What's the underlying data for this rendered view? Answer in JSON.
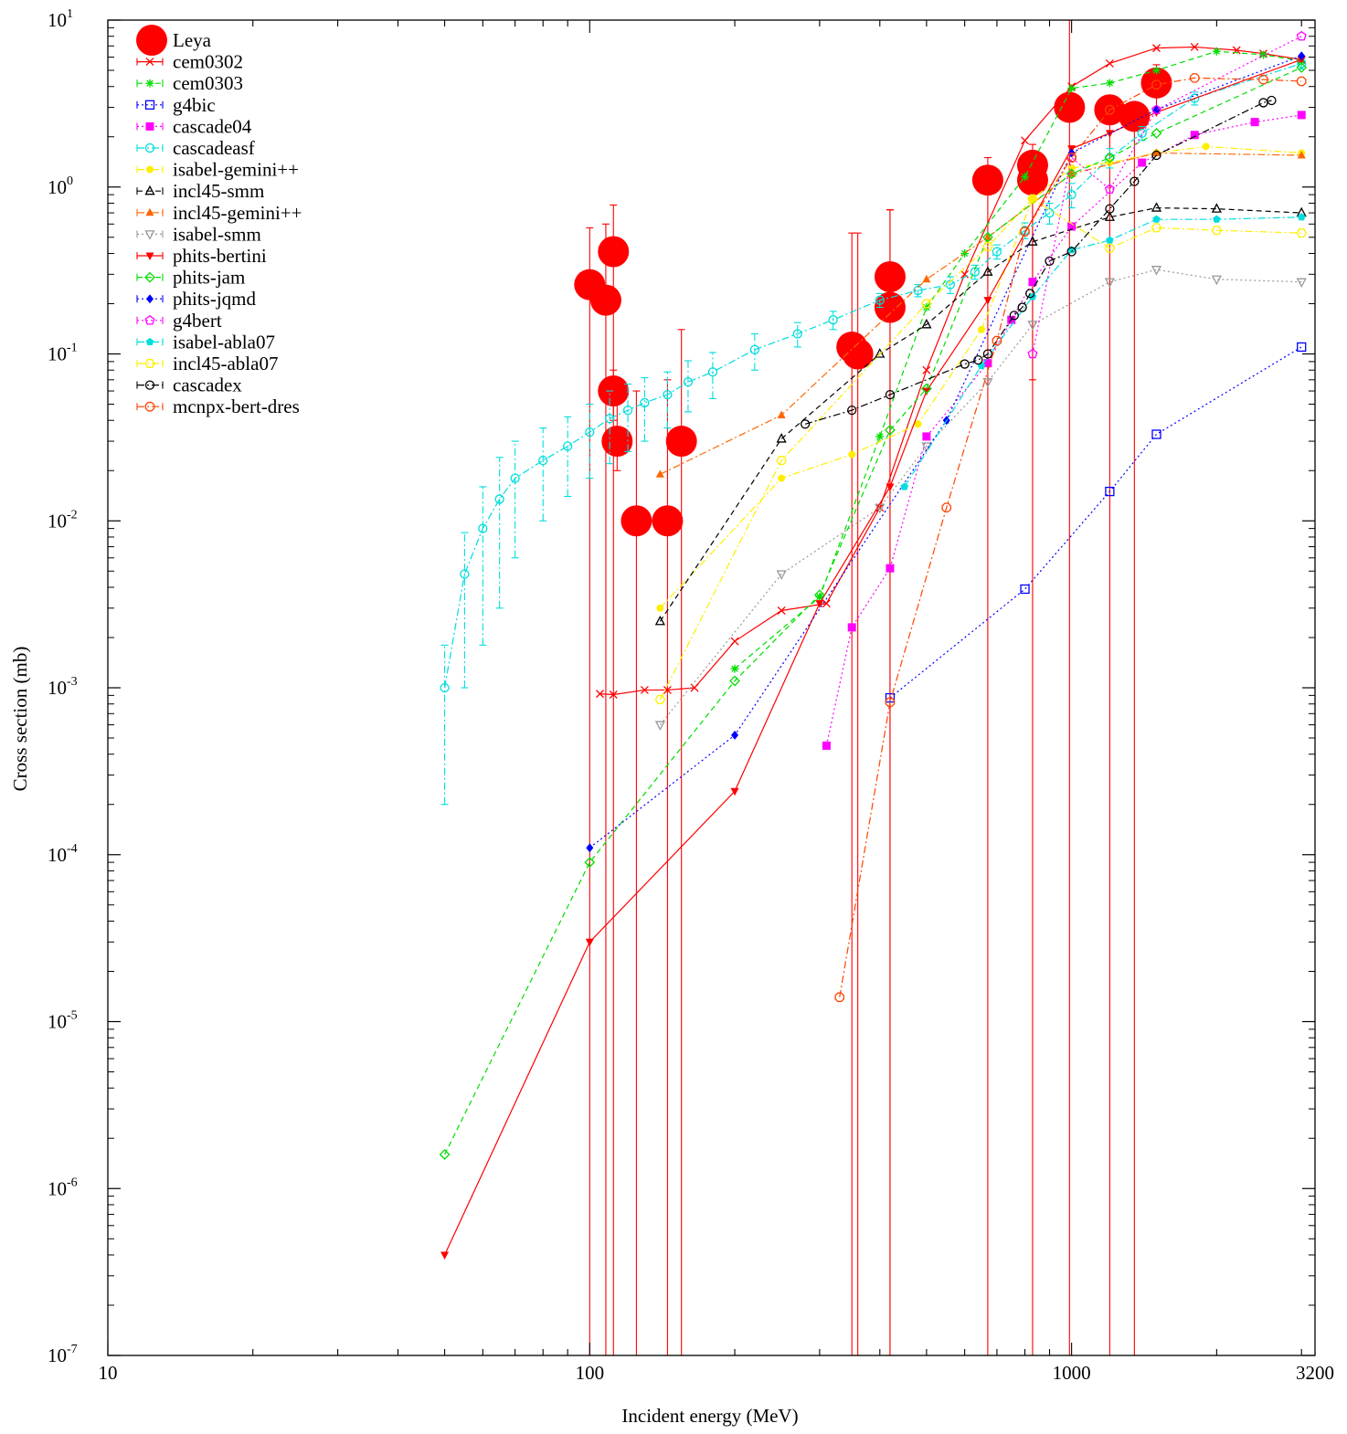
{
  "chart_data": {
    "type": "scatter",
    "title": "",
    "xlabel": "Incident energy (MeV)",
    "ylabel": "Cross section (mb)",
    "xscale": "log",
    "yscale": "log",
    "xlim": [
      10,
      3200
    ],
    "ylim": [
      1e-07,
      10
    ],
    "x_ticks": [
      {
        "value": 10,
        "label": "10"
      },
      {
        "value": 100,
        "label": "100"
      },
      {
        "value": 1000,
        "label": "1000"
      },
      {
        "value": 3200,
        "label": "3200"
      }
    ],
    "y_ticks": [
      {
        "value": 1e-07,
        "base": "10",
        "exp": "-7"
      },
      {
        "value": 1e-06,
        "base": "10",
        "exp": "-6"
      },
      {
        "value": 1e-05,
        "base": "10",
        "exp": "-5"
      },
      {
        "value": 0.0001,
        "base": "10",
        "exp": "-4"
      },
      {
        "value": 0.001,
        "base": "10",
        "exp": "-3"
      },
      {
        "value": 0.01,
        "base": "10",
        "exp": "-2"
      },
      {
        "value": 0.1,
        "base": "10",
        "exp": "-1"
      },
      {
        "value": 1,
        "base": "10",
        "exp": "0"
      },
      {
        "value": 10,
        "base": "10",
        "exp": "1"
      }
    ],
    "grid": false,
    "legend_position": "top-left",
    "series": [
      {
        "name": "Leya",
        "color": "#ff0000",
        "marker": "bigcircle",
        "line": "none",
        "x": [
          100,
          108,
          112,
          112,
          114,
          125,
          145,
          155,
          350,
          360,
          420,
          420,
          670,
          830,
          830,
          990,
          1200,
          1350,
          1500
        ],
        "y": [
          0.26,
          0.21,
          0.41,
          0.06,
          0.03,
          0.01,
          0.01,
          0.03,
          0.11,
          0.1,
          0.29,
          0.19,
          1.1,
          1.35,
          1.1,
          3.0,
          2.9,
          2.65,
          4.2
        ],
        "err_low": [
          1e-07,
          1e-07,
          1e-07,
          0.04,
          0.02,
          1e-07,
          1e-07,
          1e-07,
          1e-07,
          1e-07,
          1e-07,
          1e-07,
          1e-07,
          1e-07,
          0.07,
          1e-07,
          1e-07,
          1e-07,
          3.0
        ],
        "err_high": [
          0.57,
          0.6,
          0.78,
          0.08,
          0.05,
          0.06,
          0.07,
          0.14,
          0.53,
          0.53,
          0.73,
          0.73,
          1.5,
          1.8,
          1.5,
          10,
          3.2,
          3.0,
          5.4
        ]
      },
      {
        "name": "cem0302",
        "color": "#ff0000",
        "marker": "x",
        "line": "solid",
        "x": [
          105,
          112,
          130,
          145,
          165,
          200,
          250,
          310,
          400,
          500,
          600,
          800,
          1000,
          1200,
          1500,
          1800,
          2200,
          2500,
          3000
        ],
        "y": [
          0.00092,
          0.00091,
          0.00097,
          0.00097,
          0.001,
          0.0019,
          0.0029,
          0.0032,
          0.012,
          0.08,
          0.3,
          1.9,
          4.0,
          5.5,
          6.8,
          6.9,
          6.6,
          6.3,
          5.8
        ]
      },
      {
        "name": "cem0303",
        "color": "#00dd00",
        "marker": "star",
        "line": "dashed",
        "x": [
          200,
          300,
          400,
          500,
          600,
          800,
          1000,
          1200,
          1500,
          2000,
          2500,
          3000
        ],
        "y": [
          0.0013,
          0.0035,
          0.032,
          0.19,
          0.4,
          1.15,
          3.9,
          4.2,
          5.0,
          6.5,
          6.2,
          5.7
        ]
      },
      {
        "name": "g4bic",
        "color": "#0000ff",
        "marker": "opensquare",
        "line": "dotted",
        "x": [
          420,
          800,
          1200,
          1500,
          3000
        ],
        "y": [
          0.00087,
          0.0039,
          0.015,
          0.033,
          0.11
        ]
      },
      {
        "name": "cascade04",
        "color": "#ff00ff",
        "marker": "filledsquare",
        "line": "dotted",
        "x": [
          310,
          350,
          420,
          500,
          670,
          750,
          830,
          1000,
          1400,
          1800,
          2400,
          3000
        ],
        "y": [
          0.00045,
          0.0023,
          0.0052,
          0.032,
          0.088,
          0.16,
          0.27,
          0.58,
          1.4,
          2.05,
          2.45,
          2.7
        ]
      },
      {
        "name": "cascadeasf",
        "color": "#00dddd",
        "marker": "opencircle",
        "line": "dashdot",
        "x": [
          50,
          55,
          60,
          65,
          70,
          80,
          90,
          100,
          110,
          120,
          130,
          145,
          160,
          180,
          220,
          270,
          320,
          400,
          480,
          560,
          630,
          700,
          800,
          900,
          1000,
          1200,
          1400,
          1800,
          3000
        ],
        "y": [
          0.001,
          0.0048,
          0.009,
          0.0135,
          0.018,
          0.023,
          0.028,
          0.034,
          0.041,
          0.046,
          0.051,
          0.057,
          0.068,
          0.078,
          0.106,
          0.132,
          0.16,
          0.21,
          0.24,
          0.26,
          0.31,
          0.41,
          0.55,
          0.7,
          0.9,
          1.5,
          2.1,
          3.4,
          5.5
        ],
        "err_low": [
          0.0002,
          0.001,
          0.0018,
          0.003,
          0.006,
          0.01,
          0.014,
          0.018,
          0.022,
          0.026,
          0.03,
          0.036,
          0.045,
          0.054,
          0.08,
          0.11,
          0.14,
          0.19,
          0.22,
          0.23,
          0.28,
          0.37,
          0.49,
          0.6,
          0.75,
          1.3,
          1.9,
          3.1,
          5.1
        ],
        "err_high": [
          0.0018,
          0.0085,
          0.016,
          0.024,
          0.03,
          0.036,
          0.042,
          0.05,
          0.06,
          0.066,
          0.072,
          0.078,
          0.091,
          0.102,
          0.132,
          0.154,
          0.18,
          0.23,
          0.26,
          0.29,
          0.34,
          0.45,
          0.61,
          0.8,
          1.05,
          1.7,
          2.3,
          3.7,
          5.9
        ]
      },
      {
        "name": "isabel-gemini++",
        "color": "#ffee00",
        "marker": "filledcircle",
        "line": "dashdot",
        "x": [
          140,
          250,
          350,
          480,
          650,
          830,
          1000,
          1200,
          1500,
          1900,
          3000
        ],
        "y": [
          0.003,
          0.018,
          0.025,
          0.038,
          0.14,
          0.85,
          1.3,
          1.4,
          1.6,
          1.75,
          1.6
        ]
      },
      {
        "name": "incl45-smm",
        "color": "#000000",
        "marker": "opentriangle",
        "line": "dashed",
        "x": [
          140,
          250,
          400,
          500,
          670,
          830,
          1200,
          1500,
          2000,
          3000
        ],
        "y": [
          0.0025,
          0.031,
          0.1,
          0.15,
          0.31,
          0.47,
          0.66,
          0.75,
          0.74,
          0.7
        ]
      },
      {
        "name": "incl45-gemini++",
        "color": "#ff6600",
        "marker": "filledtriangle",
        "line": "dashdot",
        "x": [
          140,
          250,
          500,
          670,
          1000,
          1500,
          3000
        ],
        "y": [
          0.019,
          0.043,
          0.28,
          0.5,
          1.2,
          1.6,
          1.55
        ]
      },
      {
        "name": "isabel-smm",
        "color": "#999999",
        "marker": "opentriangledown",
        "line": "dotted",
        "x": [
          140,
          250,
          400,
          500,
          670,
          830,
          1200,
          1500,
          2000,
          3000
        ],
        "y": [
          0.0006,
          0.0048,
          0.012,
          0.028,
          0.068,
          0.15,
          0.27,
          0.32,
          0.28,
          0.27
        ]
      },
      {
        "name": "phits-bertini",
        "color": "#ff0000",
        "marker": "filledtriangledown",
        "line": "solid",
        "x": [
          50,
          100,
          200,
          300,
          420,
          500,
          670,
          1000,
          1200,
          1500,
          3000
        ],
        "y": [
          4e-07,
          3e-05,
          0.00024,
          0.0032,
          0.016,
          0.06,
          0.21,
          1.7,
          2.1,
          2.8,
          5.8
        ]
      },
      {
        "name": "phits-jam",
        "color": "#00dd00",
        "marker": "opendiamond",
        "line": "dashed",
        "x": [
          50,
          100,
          200,
          300,
          420,
          500,
          670,
          1000,
          1200,
          1500,
          3000
        ],
        "y": [
          1.6e-06,
          9e-05,
          0.0011,
          0.0036,
          0.035,
          0.062,
          0.5,
          1.2,
          1.5,
          2.1,
          5.2
        ]
      },
      {
        "name": "phits-jqmd",
        "color": "#0000ff",
        "marker": "filleddiamond",
        "line": "dotted",
        "x": [
          100,
          200,
          550,
          1000,
          1500,
          3000
        ],
        "y": [
          0.00011,
          0.00052,
          0.04,
          1.6,
          2.9,
          6.1
        ]
      },
      {
        "name": "g4bert",
        "color": "#ff00ff",
        "marker": "openpentagon",
        "line": "dotted",
        "x": [
          830,
          1000,
          1200,
          1500,
          3000
        ],
        "y": [
          0.1,
          1.5,
          0.97,
          2.9,
          8.0
        ]
      },
      {
        "name": "isabel-abla07",
        "color": "#00dddd",
        "marker": "filledpentagon",
        "line": "dashdot",
        "x": [
          450,
          650,
          830,
          1000,
          1200,
          1500,
          2000,
          3000
        ],
        "y": [
          0.016,
          0.085,
          0.22,
          0.42,
          0.48,
          0.64,
          0.64,
          0.66
        ]
      },
      {
        "name": "incl45-abla07",
        "color": "#ffee00",
        "marker": "openhexagon",
        "line": "dashdot",
        "x": [
          140,
          250,
          500,
          670,
          830,
          1200,
          1500,
          2000,
          3000
        ],
        "y": [
          0.00085,
          0.023,
          0.2,
          0.44,
          0.85,
          0.43,
          0.57,
          0.55,
          0.53
        ]
      },
      {
        "name": "cascadex",
        "color": "#000000",
        "marker": "opencircle",
        "line": "dashdot",
        "x": [
          280,
          350,
          420,
          600,
          640,
          670,
          760,
          790,
          820,
          900,
          1000,
          1200,
          1350,
          1500,
          2500,
          2600
        ],
        "y": [
          0.038,
          0.046,
          0.057,
          0.087,
          0.092,
          0.1,
          0.17,
          0.19,
          0.23,
          0.36,
          0.41,
          0.74,
          1.08,
          1.55,
          3.2,
          3.3
        ]
      },
      {
        "name": "mcnpx-bert-dres",
        "color": "#ff4400",
        "marker": "openoctagon",
        "line": "dashdot",
        "x": [
          330,
          420,
          550,
          700,
          800,
          1000,
          1200,
          1500,
          1800,
          2500,
          3000
        ],
        "y": [
          1.4e-05,
          0.00082,
          0.012,
          0.12,
          0.54,
          1.5,
          2.9,
          4.1,
          4.5,
          4.4,
          4.3
        ]
      }
    ]
  }
}
